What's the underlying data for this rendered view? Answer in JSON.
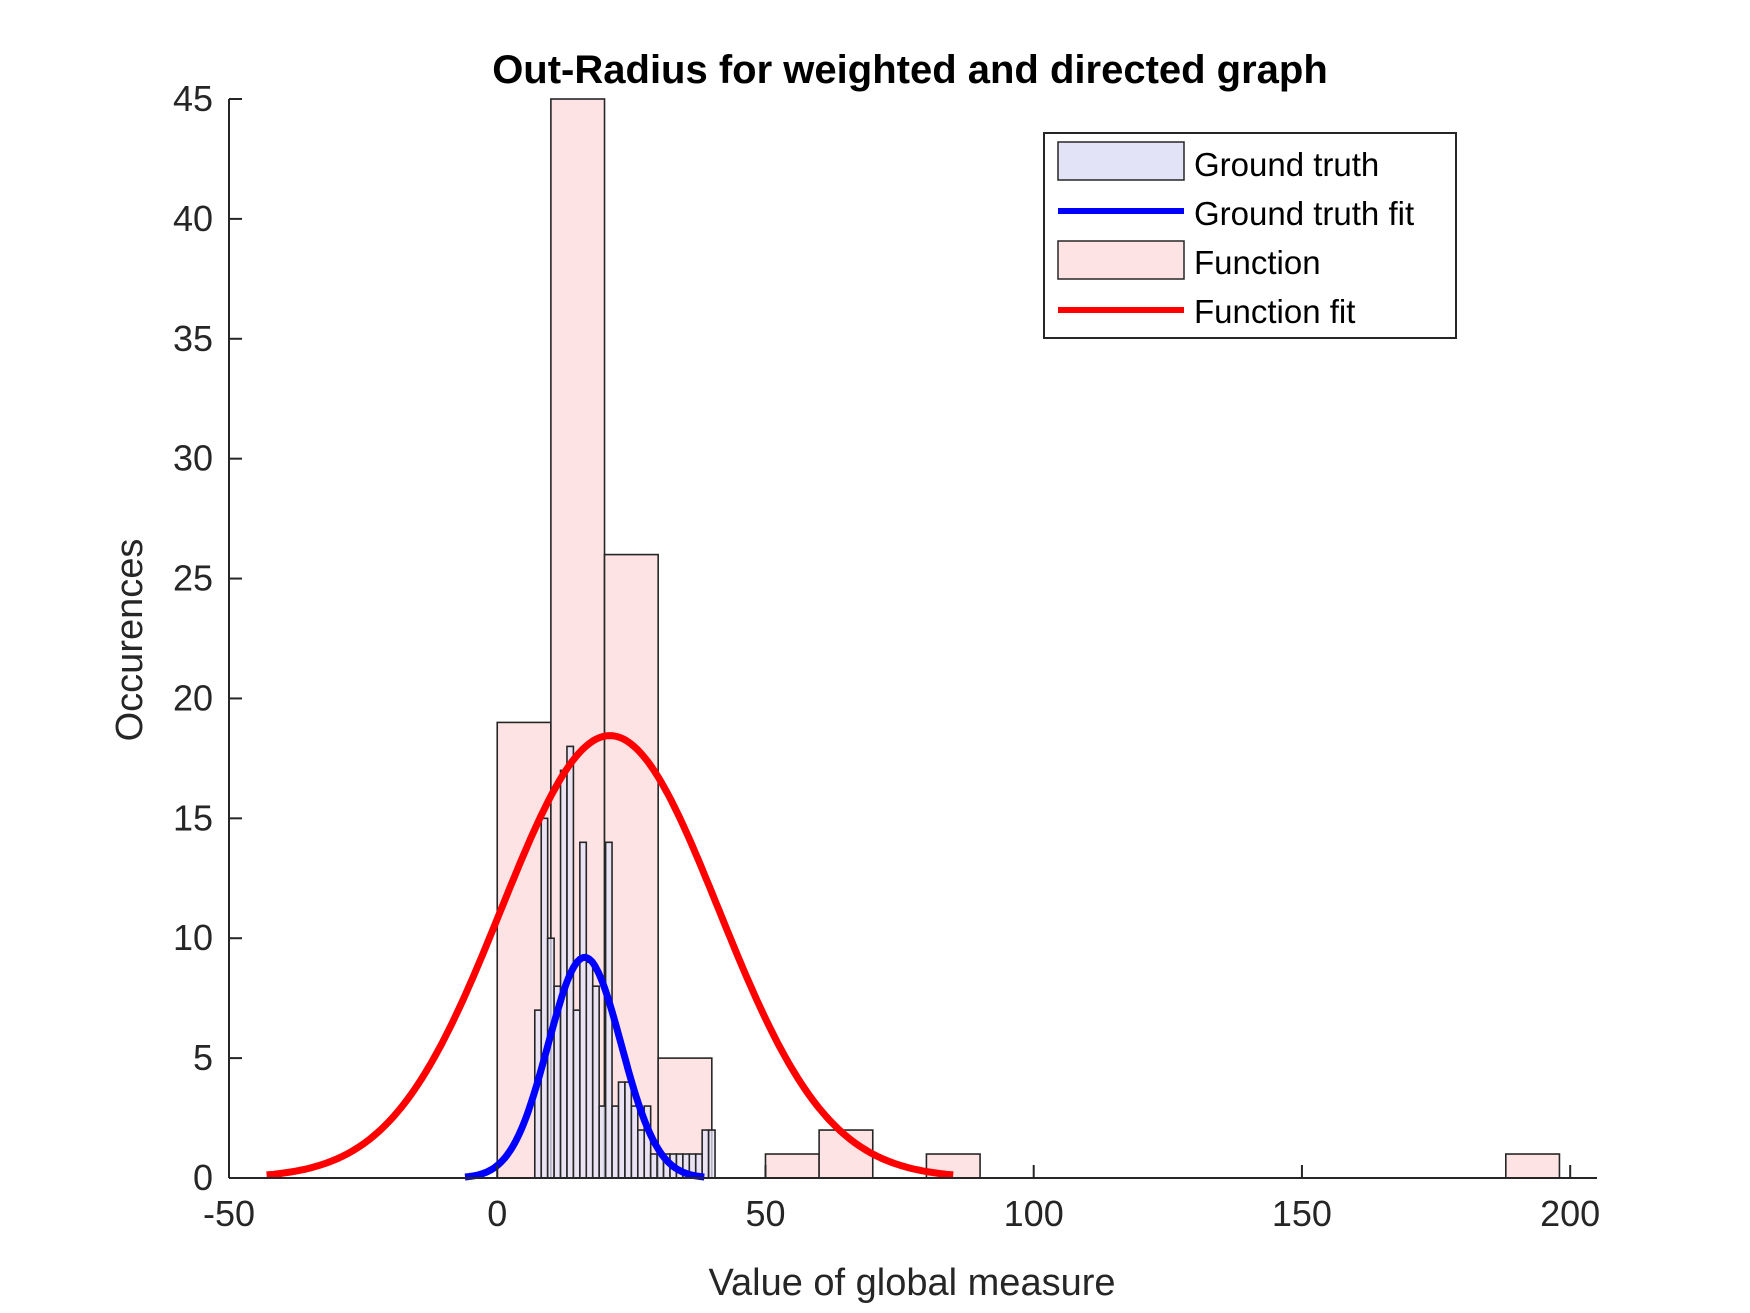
{
  "chart_data": {
    "type": "bar",
    "title": "Out-Radius for weighted and directed graph",
    "xlabel": "Value of global measure",
    "ylabel": "Occurences",
    "xlim": [
      -50,
      205
    ],
    "ylim": [
      0,
      45
    ],
    "xticks": [
      -50,
      0,
      50,
      100,
      150,
      200
    ],
    "yticks": [
      0,
      5,
      10,
      15,
      20,
      25,
      30,
      35,
      40,
      45
    ],
    "grid": false,
    "legend_position": "top-right",
    "legend": [
      "Ground truth",
      "Ground truth fit",
      "Function",
      "Function fit"
    ],
    "colors": {
      "ground_truth_fill": "#e3e3f8",
      "ground_truth_fit": "#0000ff",
      "function_fill": "#fde3e3",
      "function_fit": "#ff0000",
      "edge": "#262626"
    },
    "histograms": [
      {
        "name": "Function",
        "bin_width": 10,
        "bins": [
          {
            "x0": 0,
            "x1": 10,
            "count": 19
          },
          {
            "x0": 10,
            "x1": 20,
            "count": 45
          },
          {
            "x0": 20,
            "x1": 30,
            "count": 26
          },
          {
            "x0": 30,
            "x1": 40,
            "count": 5
          },
          {
            "x0": 50,
            "x1": 60,
            "count": 1
          },
          {
            "x0": 60,
            "x1": 70,
            "count": 2
          },
          {
            "x0": 80,
            "x1": 90,
            "count": 1
          },
          {
            "x0": 188,
            "x1": 198,
            "count": 1
          }
        ]
      },
      {
        "name": "Ground truth",
        "bin_width": 1.2,
        "bins": [
          {
            "x0": 7.0,
            "x1": 8.2,
            "count": 7
          },
          {
            "x0": 8.2,
            "x1": 9.4,
            "count": 15
          },
          {
            "x0": 9.4,
            "x1": 10.6,
            "count": 10
          },
          {
            "x0": 10.6,
            "x1": 11.8,
            "count": 8
          },
          {
            "x0": 11.8,
            "x1": 13.0,
            "count": 17
          },
          {
            "x0": 13.0,
            "x1": 14.2,
            "count": 18
          },
          {
            "x0": 14.2,
            "x1": 15.4,
            "count": 7
          },
          {
            "x0": 15.4,
            "x1": 16.6,
            "count": 14
          },
          {
            "x0": 16.6,
            "x1": 17.8,
            "count": 9
          },
          {
            "x0": 17.8,
            "x1": 19.0,
            "count": 8
          },
          {
            "x0": 19.0,
            "x1": 20.2,
            "count": 3
          },
          {
            "x0": 20.2,
            "x1": 21.4,
            "count": 14
          },
          {
            "x0": 21.4,
            "x1": 22.6,
            "count": 3
          },
          {
            "x0": 22.6,
            "x1": 23.8,
            "count": 4
          },
          {
            "x0": 23.8,
            "x1": 25.0,
            "count": 4
          },
          {
            "x0": 25.0,
            "x1": 26.2,
            "count": 3
          },
          {
            "x0": 26.2,
            "x1": 27.4,
            "count": 2
          },
          {
            "x0": 27.4,
            "x1": 28.6,
            "count": 3
          },
          {
            "x0": 28.6,
            "x1": 29.8,
            "count": 1
          },
          {
            "x0": 29.8,
            "x1": 31.0,
            "count": 1
          },
          {
            "x0": 31.0,
            "x1": 32.2,
            "count": 1
          },
          {
            "x0": 32.2,
            "x1": 33.4,
            "count": 1
          },
          {
            "x0": 33.4,
            "x1": 34.6,
            "count": 1
          },
          {
            "x0": 34.6,
            "x1": 35.8,
            "count": 1
          },
          {
            "x0": 35.8,
            "x1": 37.0,
            "count": 1
          },
          {
            "x0": 37.0,
            "x1": 38.2,
            "count": 1
          },
          {
            "x0": 38.2,
            "x1": 39.4,
            "count": 2
          },
          {
            "x0": 39.4,
            "x1": 40.6,
            "count": 2
          }
        ]
      }
    ],
    "fits": [
      {
        "name": "Ground truth fit",
        "mean": 16.3,
        "sigma": 6.8,
        "peak": 9.2,
        "x_range": [
          -6,
          38.6
        ]
      },
      {
        "name": "Function fit",
        "mean": 21.0,
        "sigma": 20.3,
        "peak": 18.45,
        "x_range": [
          -43,
          85
        ]
      }
    ]
  }
}
